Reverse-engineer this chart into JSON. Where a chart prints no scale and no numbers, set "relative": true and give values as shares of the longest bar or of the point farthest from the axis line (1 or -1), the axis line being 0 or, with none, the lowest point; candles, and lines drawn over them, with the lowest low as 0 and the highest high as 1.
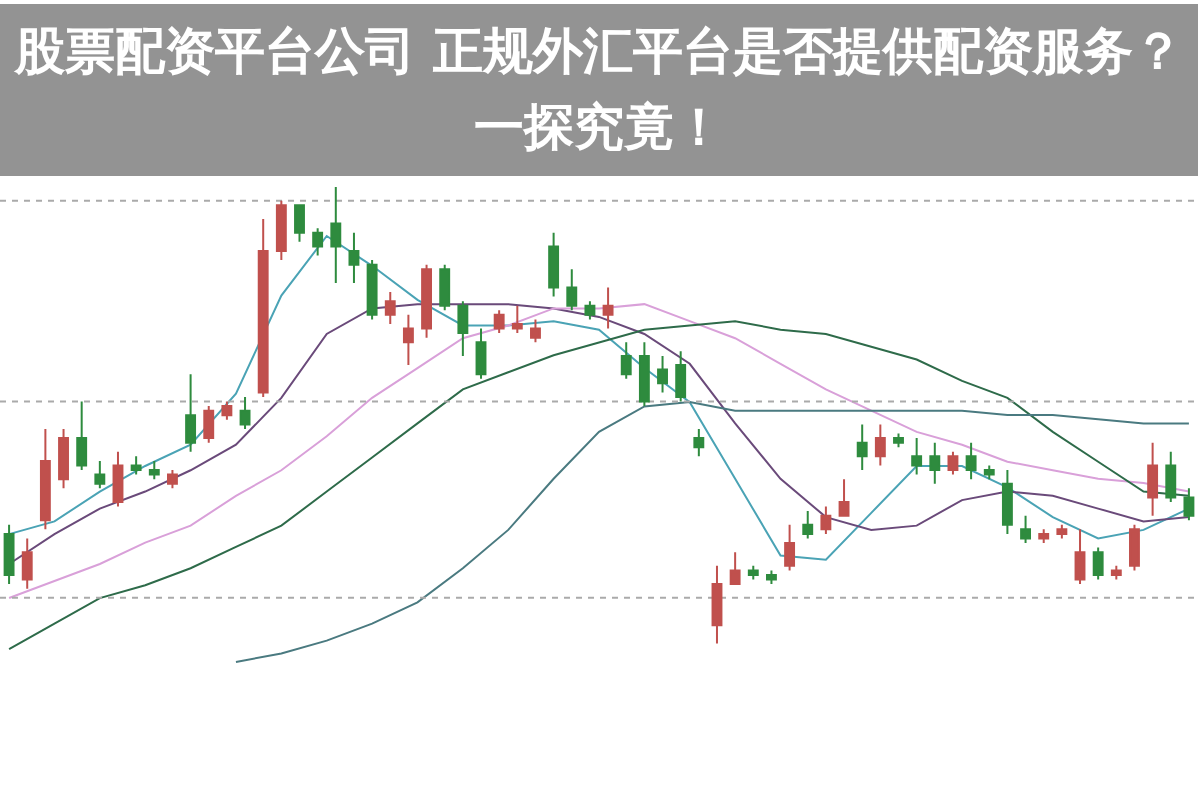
{
  "chart_data": [
    {
      "type": "candlestick",
      "title": "股票配资平台公司 正规外汇平台是否提供配资服务？一探究竟！",
      "relative": true,
      "ref_lines": [
        {
          "axis": "y",
          "value": 0.97,
          "color": "#aaaaaa",
          "line_style": "dotted"
        },
        {
          "axis": "y",
          "value": 0.53,
          "color": "#aaaaaa",
          "line_style": "dotted"
        },
        {
          "axis": "y",
          "value": 0.1,
          "color": "#aaaaaa",
          "line_style": "dotted"
        }
      ],
      "categories": [
        null,
        null,
        null,
        null,
        null,
        null,
        null,
        null,
        null,
        null,
        null,
        null,
        null,
        null,
        null,
        null,
        null,
        null,
        null,
        null,
        null,
        null,
        null,
        null,
        null,
        null,
        null,
        null,
        null,
        null,
        null,
        null,
        null,
        null,
        null,
        null,
        null,
        null,
        null,
        null,
        null,
        null,
        null,
        null,
        null,
        null,
        null,
        null,
        null,
        null,
        null,
        null,
        null,
        null,
        null,
        null,
        null,
        null,
        null,
        null,
        null,
        null,
        null,
        null,
        null,
        null
      ],
      "ohlc": [
        [
          0.24,
          0.26,
          0.13,
          0.15
        ],
        [
          0.14,
          0.23,
          0.12,
          0.2
        ],
        [
          0.27,
          0.47,
          0.25,
          0.4
        ],
        [
          0.36,
          0.47,
          0.34,
          0.45
        ],
        [
          0.45,
          0.53,
          0.38,
          0.39
        ],
        [
          0.37,
          0.4,
          0.34,
          0.35
        ],
        [
          0.31,
          0.42,
          0.3,
          0.39
        ],
        [
          0.39,
          0.41,
          0.37,
          0.38
        ],
        [
          0.38,
          0.4,
          0.36,
          0.37
        ],
        [
          0.35,
          0.38,
          0.34,
          0.37
        ],
        [
          0.5,
          0.59,
          0.42,
          0.44
        ],
        [
          0.45,
          0.52,
          0.44,
          0.51
        ],
        [
          0.5,
          0.53,
          0.49,
          0.52
        ],
        [
          0.51,
          0.54,
          0.47,
          0.48
        ],
        [
          0.55,
          0.93,
          0.54,
          0.86
        ],
        [
          0.86,
          0.97,
          0.84,
          0.96
        ],
        [
          0.96,
          0.96,
          0.88,
          0.9
        ],
        [
          0.9,
          0.91,
          0.85,
          0.87
        ],
        [
          0.92,
          1,
          0.79,
          0.87
        ],
        [
          0.86,
          0.9,
          0.79,
          0.83
        ],
        [
          0.83,
          0.84,
          0.71,
          0.72
        ],
        [
          0.72,
          0.77,
          0.7,
          0.75
        ],
        [
          0.66,
          0.72,
          0.61,
          0.69
        ],
        [
          0.69,
          0.83,
          0.67,
          0.82
        ],
        [
          0.82,
          0.83,
          0.73,
          0.74
        ],
        [
          0.74,
          0.75,
          0.63,
          0.68
        ],
        [
          0.66,
          0.69,
          0.58,
          0.59
        ],
        [
          0.69,
          0.73,
          0.68,
          0.72
        ],
        [
          0.69,
          0.74,
          0.68,
          0.7
        ],
        [
          0.67,
          0.71,
          0.66,
          0.69
        ],
        [
          0.87,
          0.9,
          0.76,
          0.78
        ],
        [
          0.78,
          0.82,
          0.73,
          0.74
        ],
        [
          0.74,
          0.75,
          0.71,
          0.72
        ],
        [
          0.72,
          0.78,
          0.69,
          0.74
        ],
        [
          0.63,
          0.66,
          0.58,
          0.59
        ],
        [
          0.63,
          0.66,
          0.52,
          0.53
        ],
        [
          0.6,
          0.63,
          0.55,
          0.57
        ],
        [
          0.61,
          0.64,
          0.53,
          0.54
        ],
        [
          0.45,
          0.47,
          0.41,
          0.43
        ],
        [
          0.04,
          0.17,
          0,
          0.13
        ],
        [
          0.13,
          0.2,
          0.13,
          0.16
        ],
        [
          0.16,
          0.17,
          0.14,
          0.15
        ],
        [
          0.15,
          0.16,
          0.13,
          0.14
        ],
        [
          0.17,
          0.26,
          0.16,
          0.22
        ],
        [
          0.26,
          0.29,
          0.23,
          0.24
        ],
        [
          0.25,
          0.3,
          0.24,
          0.28
        ],
        [
          0.28,
          0.36,
          0.28,
          0.31
        ],
        [
          0.44,
          0.48,
          0.38,
          0.41
        ],
        [
          0.41,
          0.48,
          0.39,
          0.45
        ],
        [
          0.45,
          0.46,
          0.43,
          0.44
        ],
        [
          0.41,
          0.45,
          0.37,
          0.39
        ],
        [
          0.41,
          0.44,
          0.35,
          0.38
        ],
        [
          0.38,
          0.42,
          0.37,
          0.41
        ],
        [
          0.41,
          0.44,
          0.36,
          0.38
        ],
        [
          0.38,
          0.39,
          0.36,
          0.37
        ],
        [
          0.35,
          0.38,
          0.24,
          0.26
        ],
        [
          0.25,
          0.28,
          0.22,
          0.23
        ],
        [
          0.23,
          0.25,
          0.22,
          0.24
        ],
        [
          0.24,
          0.26,
          0.23,
          0.25
        ],
        [
          0.14,
          0.25,
          0.13,
          0.2
        ],
        [
          0.2,
          0.21,
          0.14,
          0.15
        ],
        [
          0.15,
          0.17,
          0.14,
          0.16
        ],
        [
          0.17,
          0.26,
          0.16,
          0.25
        ],
        [
          0.32,
          0.44,
          0.28,
          0.39
        ],
        [
          0.39,
          0.42,
          0.31,
          0.32
        ],
        [
          0.32,
          0.34,
          0.27,
          0.28
        ]
      ]
    },
    {
      "type": "line",
      "relative": true,
      "categories": [
        null,
        null,
        null,
        null,
        null,
        null,
        null,
        null,
        null,
        null,
        null,
        null,
        null,
        null,
        null,
        null,
        null,
        null,
        null,
        null,
        null,
        null,
        null,
        null,
        null,
        null,
        null
      ],
      "series": [
        {
          "color": "#4aa3b5",
          "values": [
            0.3,
            0.33,
            0.4,
            0.46,
            0.51,
            0.63,
            0.86,
            1,
            0.93,
            0.85,
            0.79,
            0.79,
            0.8,
            0.78,
            0.69,
            0.61,
            0.43,
            0.25,
            0.24,
            0.35,
            0.46,
            0.46,
            0.41,
            0.34,
            0.29,
            0.31,
            0.36
          ]
        },
        {
          "color": "#6a4a7a",
          "values": [
            0.23,
            0.3,
            0.36,
            0.4,
            0.45,
            0.51,
            0.62,
            0.77,
            0.83,
            0.84,
            0.84,
            0.84,
            0.83,
            0.81,
            0.77,
            0.7,
            0.56,
            0.43,
            0.34,
            0.31,
            0.32,
            0.38,
            0.4,
            0.39,
            0.36,
            0.33,
            0.34
          ]
        },
        {
          "color": "#d9a0d9",
          "values": [
            0.15,
            0.19,
            0.23,
            0.28,
            0.32,
            0.39,
            0.45,
            0.53,
            0.62,
            0.69,
            0.76,
            0.79,
            0.83,
            0.83,
            0.84,
            0.8,
            0.76,
            0.7,
            0.64,
            0.59,
            0.54,
            0.51,
            0.47,
            0.45,
            0.43,
            0.42,
            0.4
          ]
        },
        {
          "color": "#2e6b4a",
          "values": [
            0.03,
            0.09,
            0.15,
            0.18,
            0.22,
            0.27,
            0.32,
            0.4,
            0.48,
            0.56,
            0.64,
            0.68,
            0.72,
            0.75,
            0.78,
            0.79,
            0.8,
            0.78,
            0.77,
            0.74,
            0.71,
            0.66,
            0.62,
            0.54,
            0.47,
            0.4,
            0.39
          ]
        },
        {
          "color": "#4a7a80",
          "values": [
            null,
            null,
            null,
            null,
            null,
            0,
            0.02,
            0.05,
            0.09,
            0.14,
            0.22,
            0.31,
            0.43,
            0.54,
            0.6,
            0.61,
            0.59,
            0.59,
            0.59,
            0.59,
            0.59,
            0.59,
            0.58,
            0.58,
            0.57,
            0.56,
            0.56
          ]
        }
      ]
    }
  ]
}
